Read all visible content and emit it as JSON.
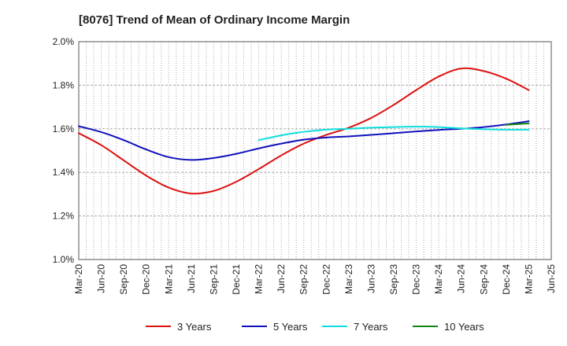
{
  "chart_data": {
    "type": "line",
    "title": "[8076]  Trend of Mean of Ordinary Income Margin",
    "xlabel": "",
    "ylabel": "",
    "x_ticks": [
      "Mar-20",
      "Jun-20",
      "Sep-20",
      "Dec-20",
      "Mar-21",
      "Jun-21",
      "Sep-21",
      "Dec-21",
      "Mar-22",
      "Jun-22",
      "Sep-22",
      "Dec-22",
      "Mar-23",
      "Jun-23",
      "Sep-23",
      "Dec-23",
      "Mar-24",
      "Jun-24",
      "Sep-24",
      "Dec-24",
      "Mar-25",
      "Jun-25"
    ],
    "y_ticks": [
      "1.0%",
      "1.2%",
      "1.4%",
      "1.6%",
      "1.8%",
      "2.0%"
    ],
    "ylim": [
      1.0,
      2.0
    ],
    "y_unit": "%",
    "grid": true,
    "legend_position": "bottom",
    "series": [
      {
        "name": "3 Years",
        "color": "#dd1111",
        "x": [
          "Mar-20",
          "Jun-20",
          "Sep-20",
          "Dec-20",
          "Mar-21",
          "Jun-21",
          "Sep-21",
          "Dec-21",
          "Mar-22",
          "Jun-22",
          "Sep-22",
          "Dec-22",
          "Mar-23",
          "Jun-23",
          "Sep-23",
          "Dec-23",
          "Mar-24",
          "Jun-24",
          "Sep-24",
          "Dec-24",
          "Mar-25"
        ],
        "values": [
          1.58,
          1.525,
          1.455,
          1.385,
          1.33,
          1.303,
          1.315,
          1.357,
          1.415,
          1.478,
          1.532,
          1.572,
          1.605,
          1.65,
          1.71,
          1.778,
          1.84,
          1.877,
          1.865,
          1.83,
          1.778
        ]
      },
      {
        "name": "5 Years",
        "color": "#1111bb",
        "x": [
          "Mar-20",
          "Jun-20",
          "Sep-20",
          "Dec-20",
          "Mar-21",
          "Jun-21",
          "Sep-21",
          "Dec-21",
          "Mar-22",
          "Jun-22",
          "Sep-22",
          "Dec-22",
          "Mar-23",
          "Jun-23",
          "Sep-23",
          "Dec-23",
          "Mar-24",
          "Jun-24",
          "Sep-24",
          "Dec-24",
          "Mar-25"
        ],
        "values": [
          1.612,
          1.585,
          1.548,
          1.505,
          1.47,
          1.457,
          1.466,
          1.485,
          1.51,
          1.532,
          1.55,
          1.56,
          1.565,
          1.572,
          1.58,
          1.588,
          1.595,
          1.6,
          1.608,
          1.62,
          1.635
        ]
      },
      {
        "name": "7 Years",
        "color": "#11dddd",
        "x": [
          "Mar-22",
          "Jun-22",
          "Sep-22",
          "Dec-22",
          "Mar-23",
          "Jun-23",
          "Sep-23",
          "Dec-23",
          "Mar-24",
          "Jun-24",
          "Sep-24",
          "Dec-24",
          "Mar-25"
        ],
        "values": [
          1.548,
          1.57,
          1.586,
          1.596,
          1.6,
          1.605,
          1.608,
          1.61,
          1.608,
          1.602,
          1.598,
          1.596,
          1.596
        ]
      },
      {
        "name": "10 Years",
        "color": "#118811",
        "x": [
          "Dec-24",
          "Mar-25"
        ],
        "values": [
          1.618,
          1.625
        ]
      }
    ]
  }
}
